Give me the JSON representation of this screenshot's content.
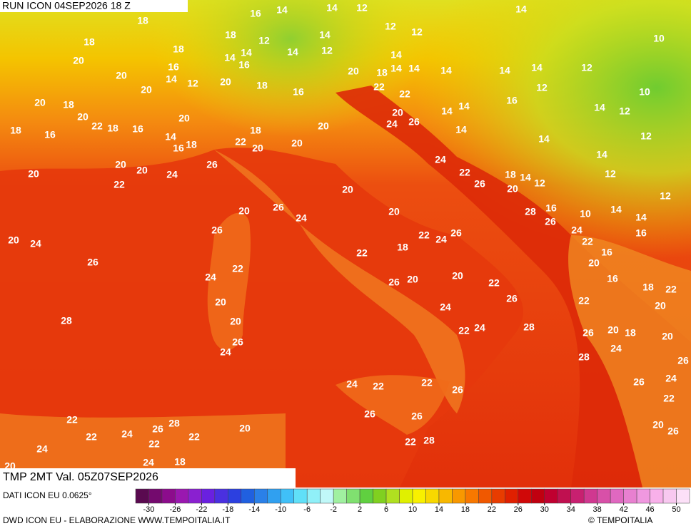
{
  "header": {
    "run": "RUN ICON 04SEP2026 18 Z",
    "field": "TMP 2MT Val. 05Z07SEP2026"
  },
  "footer": {
    "source": "DATI ICON EU 0.0625°",
    "credits": "DWD ICON EU - ELABORAZIONE WWW.TEMPOITALIA.IT",
    "brand": "© TEMPOITALIA"
  },
  "colorbar": {
    "lim": [
      -32,
      52
    ],
    "ticks": [
      -30,
      -26,
      -22,
      -18,
      -14,
      -10,
      -6,
      -2,
      2,
      6,
      10,
      14,
      18,
      22,
      26,
      30,
      34,
      38,
      42,
      46,
      50
    ],
    "colors": [
      "#5a0a50",
      "#740a6e",
      "#8c0c8c",
      "#9a18b0",
      "#8a20d0",
      "#6a20e0",
      "#4a30e0",
      "#2c40e0",
      "#2060e0",
      "#2a80e8",
      "#30a0f0",
      "#40c0f8",
      "#60e0f8",
      "#90f0f8",
      "#c0f8f8",
      "#a0f0a0",
      "#80e070",
      "#60d040",
      "#80d020",
      "#b0e020",
      "#e0f000",
      "#f8f000",
      "#f8d800",
      "#f8b800",
      "#f89800",
      "#f87800",
      "#f05800",
      "#e83c00",
      "#e02000",
      "#d00808",
      "#c00010",
      "#c00030",
      "#c01050",
      "#c82070",
      "#d03890",
      "#d850a8",
      "#e068c0",
      "#e880d0",
      "#f098e0",
      "#f8b0ea",
      "#f8c8f0",
      "#fce0f8"
    ]
  },
  "map": {
    "labels": [
      16,
      14,
      14,
      12,
      18,
      14,
      12,
      12,
      18,
      12,
      14,
      12,
      18,
      18,
      14,
      14,
      14,
      12,
      14,
      10,
      20,
      16,
      16,
      20,
      18,
      14,
      14,
      14,
      14,
      14,
      12,
      20,
      14,
      12,
      20,
      18,
      16,
      22,
      20,
      12,
      10,
      20,
      18,
      16,
      14,
      14,
      14,
      12,
      20,
      20,
      20,
      20,
      24,
      26,
      22,
      18,
      16,
      18,
      16,
      18,
      14,
      14,
      18,
      16,
      22,
      20,
      20,
      14,
      12,
      14,
      24,
      20,
      20,
      26,
      24,
      20,
      22,
      18,
      14,
      12,
      12,
      22,
      26,
      20,
      20,
      12,
      26,
      28,
      16,
      20,
      20,
      24,
      10,
      14,
      14,
      26,
      26,
      24,
      16,
      22,
      24,
      26,
      20,
      24,
      22,
      18,
      22,
      16,
      26,
      20,
      22,
      24,
      20,
      20,
      26,
      22,
      16,
      18,
      22,
      26,
      20,
      22,
      20,
      24,
      28,
      20,
      28,
      22,
      24,
      20,
      18,
      26,
      20,
      26,
      24,
      24,
      28,
      26,
      24,
      22,
      22,
      26,
      26,
      24,
      22,
      26,
      26,
      22,
      28,
      26,
      24,
      22,
      22,
      20,
      22,
      20,
      26,
      24,
      22,
      28,
      24,
      18,
      20,
      22
    ]
  }
}
